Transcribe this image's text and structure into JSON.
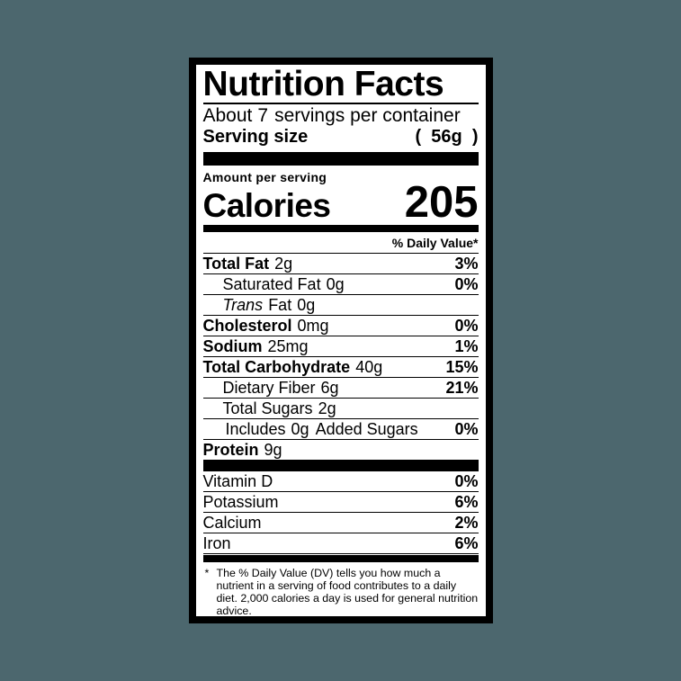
{
  "colors": {
    "background": "#4c676e",
    "label_bg": "#ffffff",
    "text": "#000000"
  },
  "label": {
    "title": "Nutrition Facts",
    "servings": {
      "prefix": "About",
      "count": "7",
      "suffix": "servings per container"
    },
    "serving_size": {
      "label": "Serving size",
      "value": "(  56g  )"
    },
    "amount_per_serving": "Amount per serving",
    "calories_label": "Calories",
    "calories_value": "205",
    "daily_value_header": "% Daily Value*",
    "nutrients": [
      {
        "name": "Total Fat",
        "amount": "2g",
        "dv": "3%"
      },
      {
        "name": "Saturated Fat",
        "amount": "0g",
        "dv": "0%"
      },
      {
        "name_italic": "Trans",
        "name": "Fat",
        "amount": "0g",
        "dv": ""
      },
      {
        "name": "Cholesterol",
        "amount": "0mg",
        "dv": "0%"
      },
      {
        "name": "Sodium",
        "amount": "25mg",
        "dv": "1%"
      },
      {
        "name": "Total Carbohydrate",
        "amount": "40g",
        "dv": "15%"
      },
      {
        "name": "Dietary Fiber",
        "amount": "6g",
        "dv": "21%"
      },
      {
        "name": "Total Sugars",
        "amount": "2g",
        "dv": ""
      },
      {
        "name": "Includes",
        "amount": "0g",
        "suffix": "Added Sugars",
        "dv": "0%"
      },
      {
        "name": "Protein",
        "amount": "9g",
        "dv": ""
      }
    ],
    "vitamins": [
      {
        "name": "Vitamin D",
        "dv": "0%"
      },
      {
        "name": "Potassium",
        "dv": "6%"
      },
      {
        "name": "Calcium",
        "dv": "2%"
      },
      {
        "name": "Iron",
        "dv": "6%"
      }
    ],
    "footnote": {
      "marker": "*",
      "text": "The % Daily Value (DV) tells you how much a nutrient in a serving of food contributes to a daily diet. 2,000 calories a day is used for general nutrition advice."
    }
  }
}
